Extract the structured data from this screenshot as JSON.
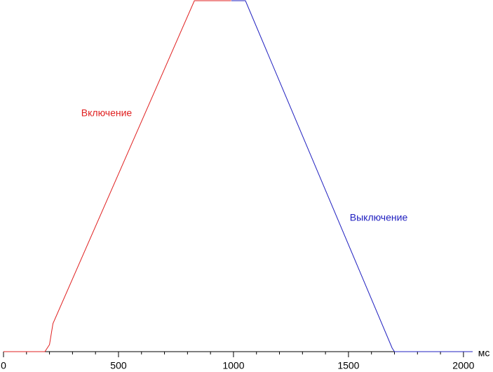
{
  "chart_data": {
    "type": "line",
    "xlabel": "мс",
    "xlim": [
      0,
      2040
    ],
    "xticks": [
      0,
      500,
      1000,
      1500,
      2000
    ],
    "xminor_ticks": [
      100,
      200,
      300,
      400,
      600,
      700,
      800,
      900,
      1100,
      1200,
      1300,
      1400,
      1600,
      1700,
      1800,
      1900
    ],
    "ylim": [
      0,
      100
    ],
    "series": [
      {
        "name": "Включение",
        "color": "#e02020",
        "x": [
          0,
          180,
          200,
          215,
          830,
          990
        ],
        "values": [
          0,
          0,
          2,
          8,
          100,
          100
        ]
      },
      {
        "name": "Выключение",
        "color": "#2020c0",
        "x": [
          991,
          1052,
          1690,
          1700,
          2040
        ],
        "values": [
          100,
          100,
          1,
          0,
          0
        ]
      }
    ]
  }
}
